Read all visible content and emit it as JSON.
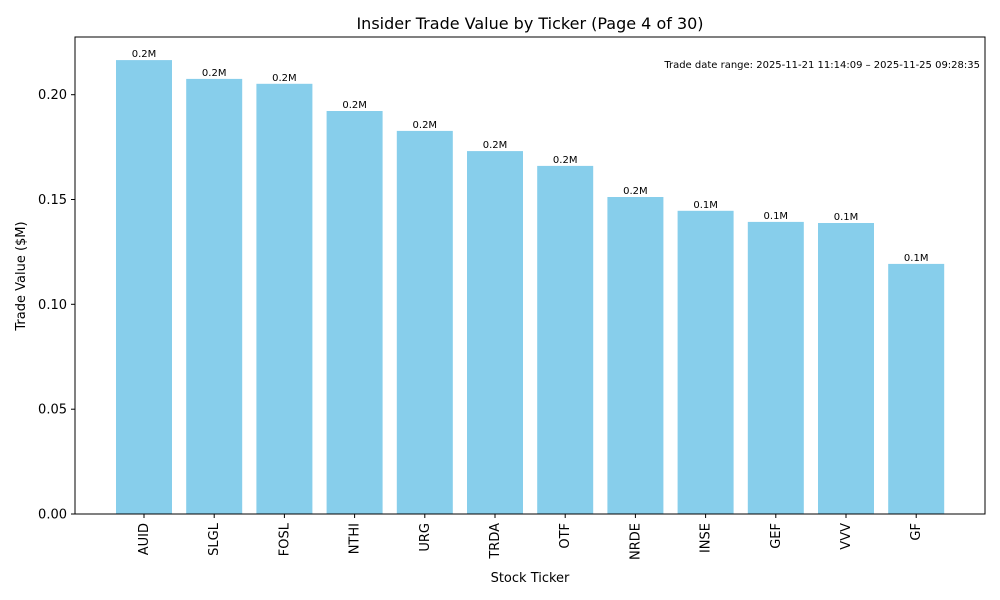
{
  "chart_data": {
    "type": "bar",
    "title": "Insider Trade Value by Ticker (Page 4 of 30)",
    "xlabel": "Stock Ticker",
    "ylabel": "Trade Value ($M)",
    "ylim": [
      0,
      0.2275
    ],
    "yticks": [
      0.0,
      0.05,
      0.1,
      0.15,
      0.2
    ],
    "ytick_labels": [
      "0.00",
      "0.05",
      "0.10",
      "0.15",
      "0.20"
    ],
    "categories": [
      "AUID",
      "SLGL",
      "FOSL",
      "NTHI",
      "URG",
      "TRDA",
      "OTF",
      "NRDE",
      "INSE",
      "GEF",
      "VVV",
      "GF"
    ],
    "values": [
      0.2165,
      0.2075,
      0.2052,
      0.1922,
      0.1827,
      0.1731,
      0.166,
      0.1512,
      0.1446,
      0.1393,
      0.1388,
      0.1193
    ],
    "data_labels": [
      "0.2M",
      "0.2M",
      "0.2M",
      "0.2M",
      "0.2M",
      "0.2M",
      "0.2M",
      "0.2M",
      "0.1M",
      "0.1M",
      "0.1M",
      "0.1M"
    ],
    "annotation": "Trade date range: 2025-11-21 11:14:09 – 2025-11-25 09:28:35",
    "bar_color": "#87CEEB",
    "grid": false,
    "legend": "none"
  }
}
